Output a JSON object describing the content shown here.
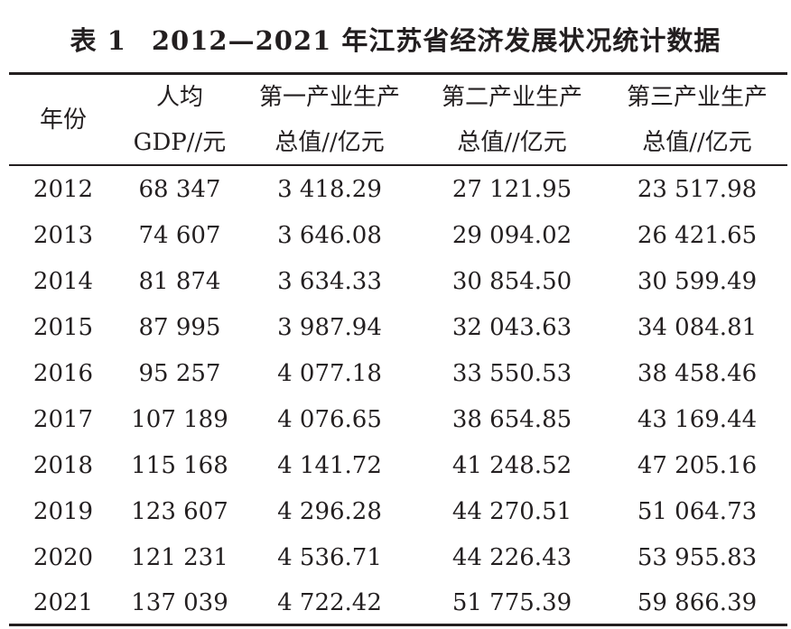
{
  "caption": {
    "number": "表 1",
    "title": "2012—2021 年江苏省经济发展状况统计数据"
  },
  "header": {
    "year": "年份",
    "gdp_per_capita": [
      "人均",
      "GDP//元"
    ],
    "primary": [
      "第一产业生产",
      "总值//亿元"
    ],
    "secondary": [
      "第二产业生产",
      "总值//亿元"
    ],
    "tertiary": [
      "第三产业生产",
      "总值//亿元"
    ]
  },
  "rows": [
    [
      "2012",
      "68 347",
      "3 418.29",
      "27 121.95",
      "23 517.98"
    ],
    [
      "2013",
      "74 607",
      "3 646.08",
      "29 094.02",
      "26 421.65"
    ],
    [
      "2014",
      "81 874",
      "3 634.33",
      "30 854.50",
      "30 599.49"
    ],
    [
      "2015",
      "87 995",
      "3 987.94",
      "32 043.63",
      "34 084.81"
    ],
    [
      "2016",
      "95 257",
      "4 077.18",
      "33 550.53",
      "38 458.46"
    ],
    [
      "2017",
      "107 189",
      "4 076.65",
      "38 654.85",
      "43 169.44"
    ],
    [
      "2018",
      "115 168",
      "4 141.72",
      "41 248.52",
      "47 205.16"
    ],
    [
      "2019",
      "123 607",
      "4 296.28",
      "44 270.51",
      "51 064.73"
    ],
    [
      "2020",
      "121 231",
      "4 536.71",
      "44 226.43",
      "53 955.83"
    ],
    [
      "2021",
      "137 039",
      "4 722.42",
      "51 775.39",
      "59 866.39"
    ]
  ]
}
